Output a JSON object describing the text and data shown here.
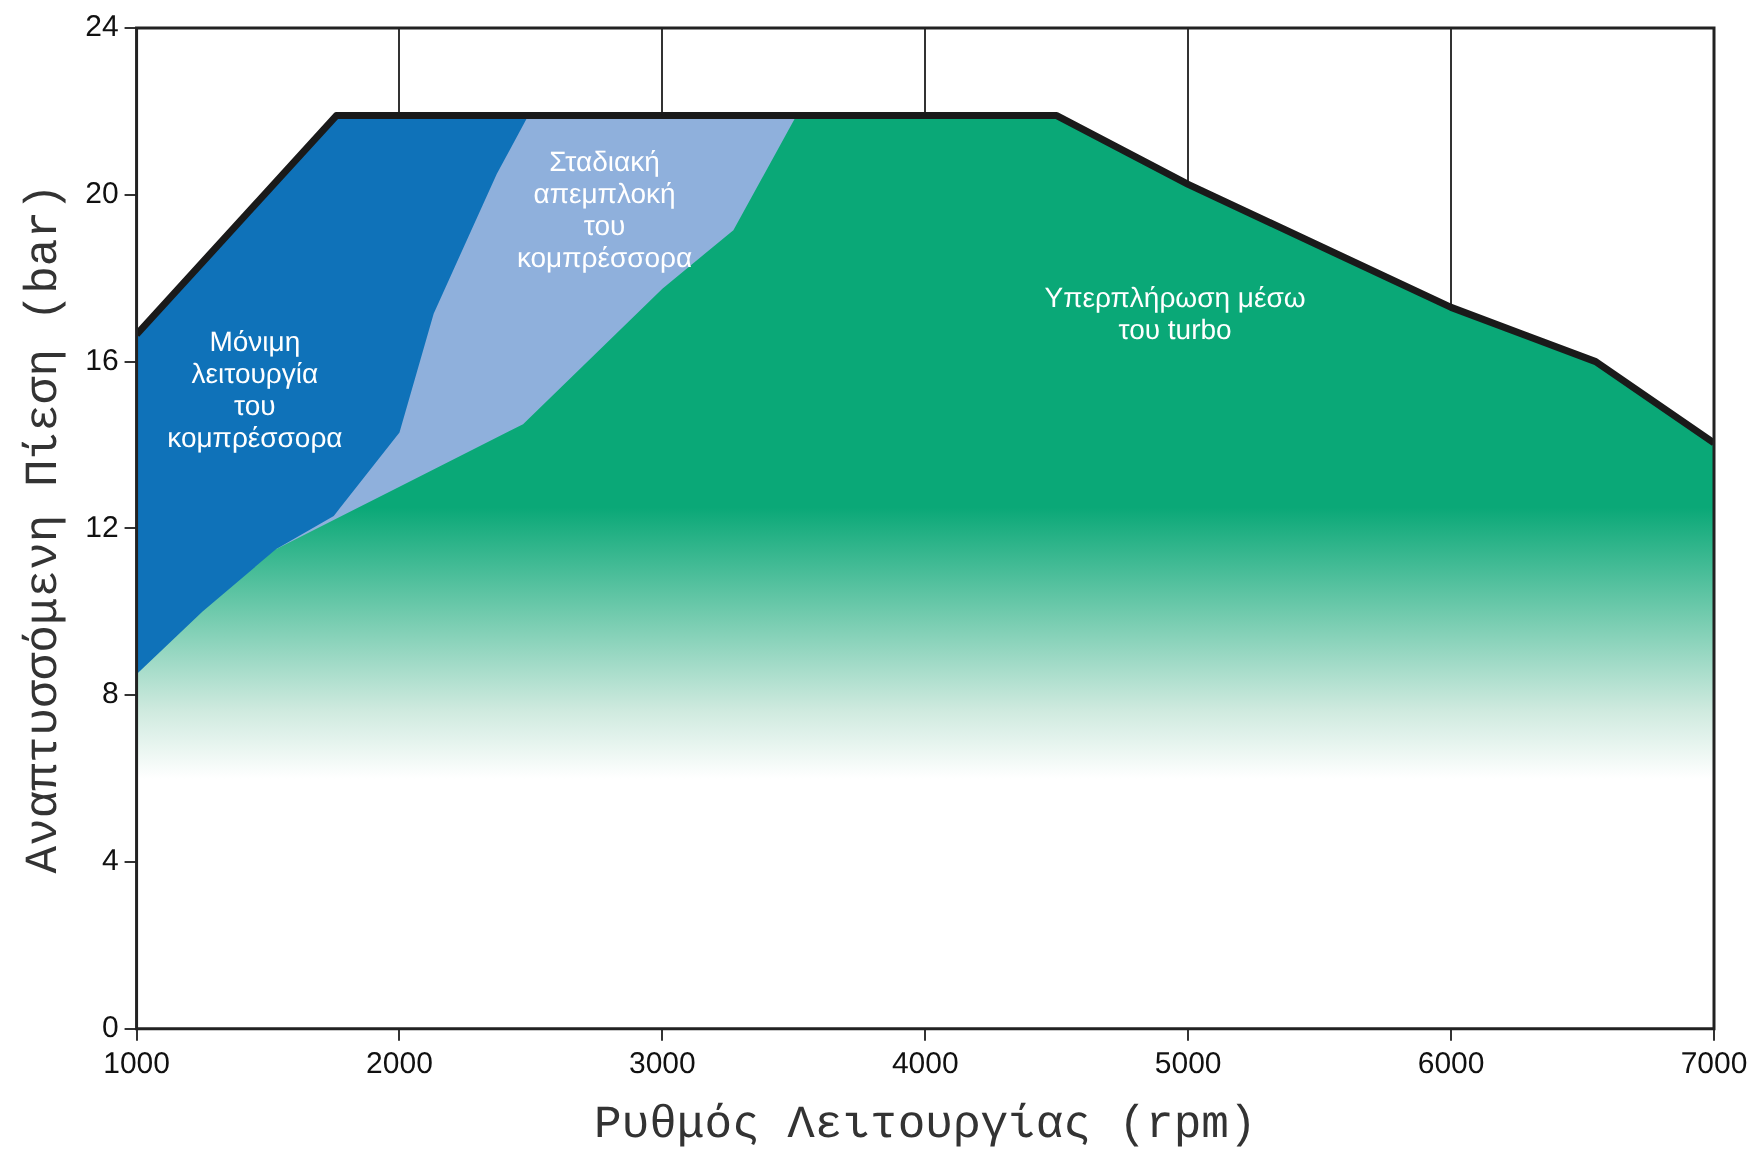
{
  "chart_data": {
    "type": "area",
    "xlabel": "Ρυθμός Λειτουργίας (rpm)",
    "ylabel": "Αναπτυσσόμενη Πίεση (bar)",
    "xlim": [
      1000,
      7000
    ],
    "xticks": [
      1000,
      2000,
      3000,
      4000,
      5000,
      6000,
      7000
    ],
    "ylim": [
      0,
      24
    ],
    "yticks": [
      0,
      4,
      8,
      12,
      16,
      20,
      24
    ],
    "grid": "x",
    "legend": false,
    "series": [
      {
        "name": "Μόνιμη λειτουργία του κομπρέσσορα",
        "color": "#0f72b9",
        "x": [
          1000,
          1760,
          2490
        ],
        "values": [
          16.65,
          21.9,
          21.9
        ]
      },
      {
        "name": "Σταδιακή απεμπλοκή του κομπρέσσορα",
        "color": "#8fb0dc",
        "x": [
          1530,
          1750,
          2000,
          2130,
          2370,
          2490,
          3510
        ],
        "values": [
          11.5,
          12.3,
          14.3,
          17.15,
          20.5,
          21.9,
          21.9
        ]
      },
      {
        "name": "Υπερπλήρωση μέσω του turbo",
        "color": "#0aa877",
        "x": [
          1000,
          1250,
          1530,
          2000,
          2470,
          3000,
          3270,
          3510,
          4500,
          5000,
          6000,
          6550,
          7000
        ],
        "values": [
          8.5,
          10,
          11.5,
          13,
          14.5,
          17.75,
          19.15,
          21.9,
          21.9,
          20.25,
          17.3,
          16,
          14.05
        ]
      },
      {
        "type": "line",
        "color": "#1a1a1a",
        "x": [
          1000,
          1760,
          4500,
          5000,
          6000,
          6550,
          7000
        ],
        "values": [
          16.65,
          21.9,
          21.9,
          20.25,
          17.3,
          16,
          14.05
        ]
      }
    ]
  }
}
